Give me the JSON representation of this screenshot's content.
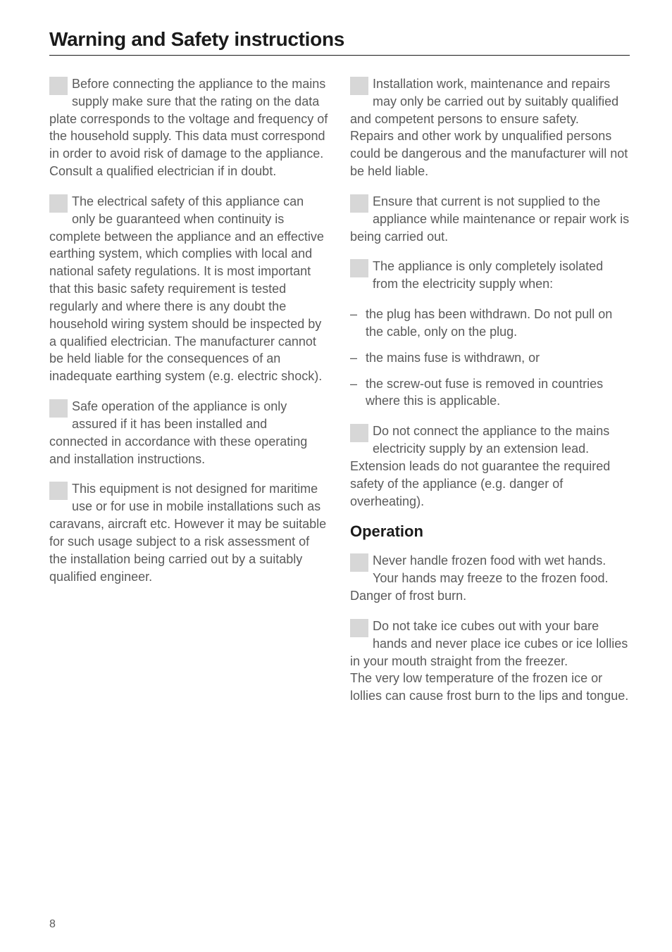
{
  "page": {
    "title": "Warning and Safety instructions",
    "number": "8",
    "background_color": "#ffffff",
    "text_color": "#5a5a5a",
    "heading_color": "#1a1a1a",
    "rule_color": "#1a1a1a",
    "icon_color": "#d7d7d7",
    "body_fontsize": 18,
    "title_fontsize": 28,
    "section_fontsize": 22,
    "line_height": 1.38
  },
  "left": {
    "p1": "Before connecting the appliance to the mains supply make sure that the rating on the data plate corresponds to the voltage and frequency of the household supply. This data must correspond in order to avoid risk of damage to the appliance. Consult a qualified electrician if in doubt.",
    "p2": "The electrical safety of this appliance can only be guaranteed when continuity is complete between the appliance and an effective earthing system, which complies with local and national safety regulations. It is most important that this basic safety requirement is tested regularly and where there is any doubt the household wiring system should be inspected by a qualified electrician. The manufacturer cannot be held liable for the consequences of an inadequate earthing system (e.g. electric shock).",
    "p3": "Safe operation of the appliance is only assured if it has been installed and connected in accordance with these operating and installation instructions.",
    "p4": "This equipment is not designed for maritime use or for use in mobile installations such as caravans, aircraft etc. However it may be suitable for such usage subject to a risk assessment of the installation being carried out by a suitably qualified engineer."
  },
  "right": {
    "p1": "Installation work, maintenance and repairs may only be carried out by suitably qualified and competent persons to ensure safety.",
    "p1b": "Repairs and other work by unqualified persons could be dangerous and the manufacturer will not be held liable.",
    "p2": "Ensure that current is not supplied to the appliance while maintenance or repair work is being carried out.",
    "p3": "The appliance is only completely isolated from the electricity supply when:",
    "bullets": {
      "b1": "the plug has been withdrawn. Do not pull on the cable, only on the plug.",
      "b2": "the mains fuse is withdrawn, or",
      "b3": "the screw-out fuse is removed in countries where this is applicable."
    },
    "p4": "Do not connect the appliance to the mains electricity supply by an extension lead.",
    "p4b": "Extension leads do not guarantee the required safety of the appliance (e.g. danger of overheating).",
    "section": "Operation",
    "p5": "Never handle frozen food with wet hands. Your hands may freeze to the frozen food. Danger of frost burn.",
    "p6": "Do not take ice cubes out with your bare hands and never place ice cubes or ice lollies in your mouth straight from the freezer.",
    "p6b": "The very low temperature of the frozen ice or lollies can cause frost burn to the lips and tongue."
  }
}
